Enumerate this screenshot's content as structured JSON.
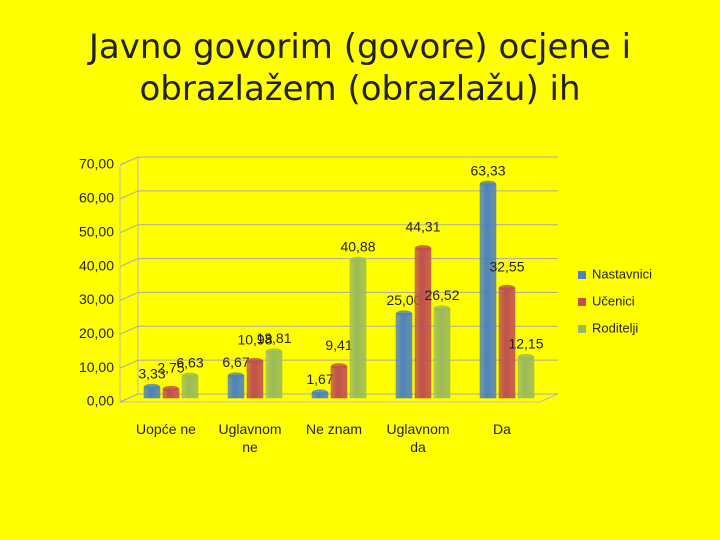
{
  "chart_data": {
    "type": "bar",
    "title": [
      "Javno govorim (govore) ocjene i",
      "obrazlažem (obrazlažu) ih"
    ],
    "categories": [
      "Uopće ne",
      "Uglavnom ne",
      "Ne znam",
      "Uglavnom da",
      "Da"
    ],
    "series": [
      {
        "name": "Nastavnici",
        "color": "#4f81bd",
        "values": [
          3.33,
          6.67,
          1.67,
          25.0,
          63.33
        ],
        "value_labels": [
          "3,33",
          "6,67",
          "1,67",
          "25,00",
          "63,33"
        ]
      },
      {
        "name": "Učenici",
        "color": "#c0504d",
        "values": [
          2.75,
          10.98,
          9.41,
          44.31,
          32.55
        ],
        "value_labels": [
          "2,75",
          "10,98",
          "9,41",
          "44,31",
          "32,55"
        ]
      },
      {
        "name": "Roditelji",
        "color": "#9bbb59",
        "values": [
          6.63,
          13.81,
          40.88,
          26.52,
          12.15
        ],
        "value_labels": [
          "6,63",
          "13,81",
          "40,88",
          "26,52",
          "12,15"
        ]
      }
    ],
    "ylim": [
      0,
      70
    ],
    "yticks": [
      {
        "value": 0,
        "label": "0,00"
      },
      {
        "value": 10,
        "label": "10,00"
      },
      {
        "value": 20,
        "label": "20,00"
      },
      {
        "value": 30,
        "label": "30,00"
      },
      {
        "value": 40,
        "label": "40,00"
      },
      {
        "value": 50,
        "label": "50,00"
      },
      {
        "value": 60,
        "label": "60,00"
      },
      {
        "value": 70,
        "label": "70,00"
      }
    ],
    "grid": true,
    "legend": "right"
  }
}
